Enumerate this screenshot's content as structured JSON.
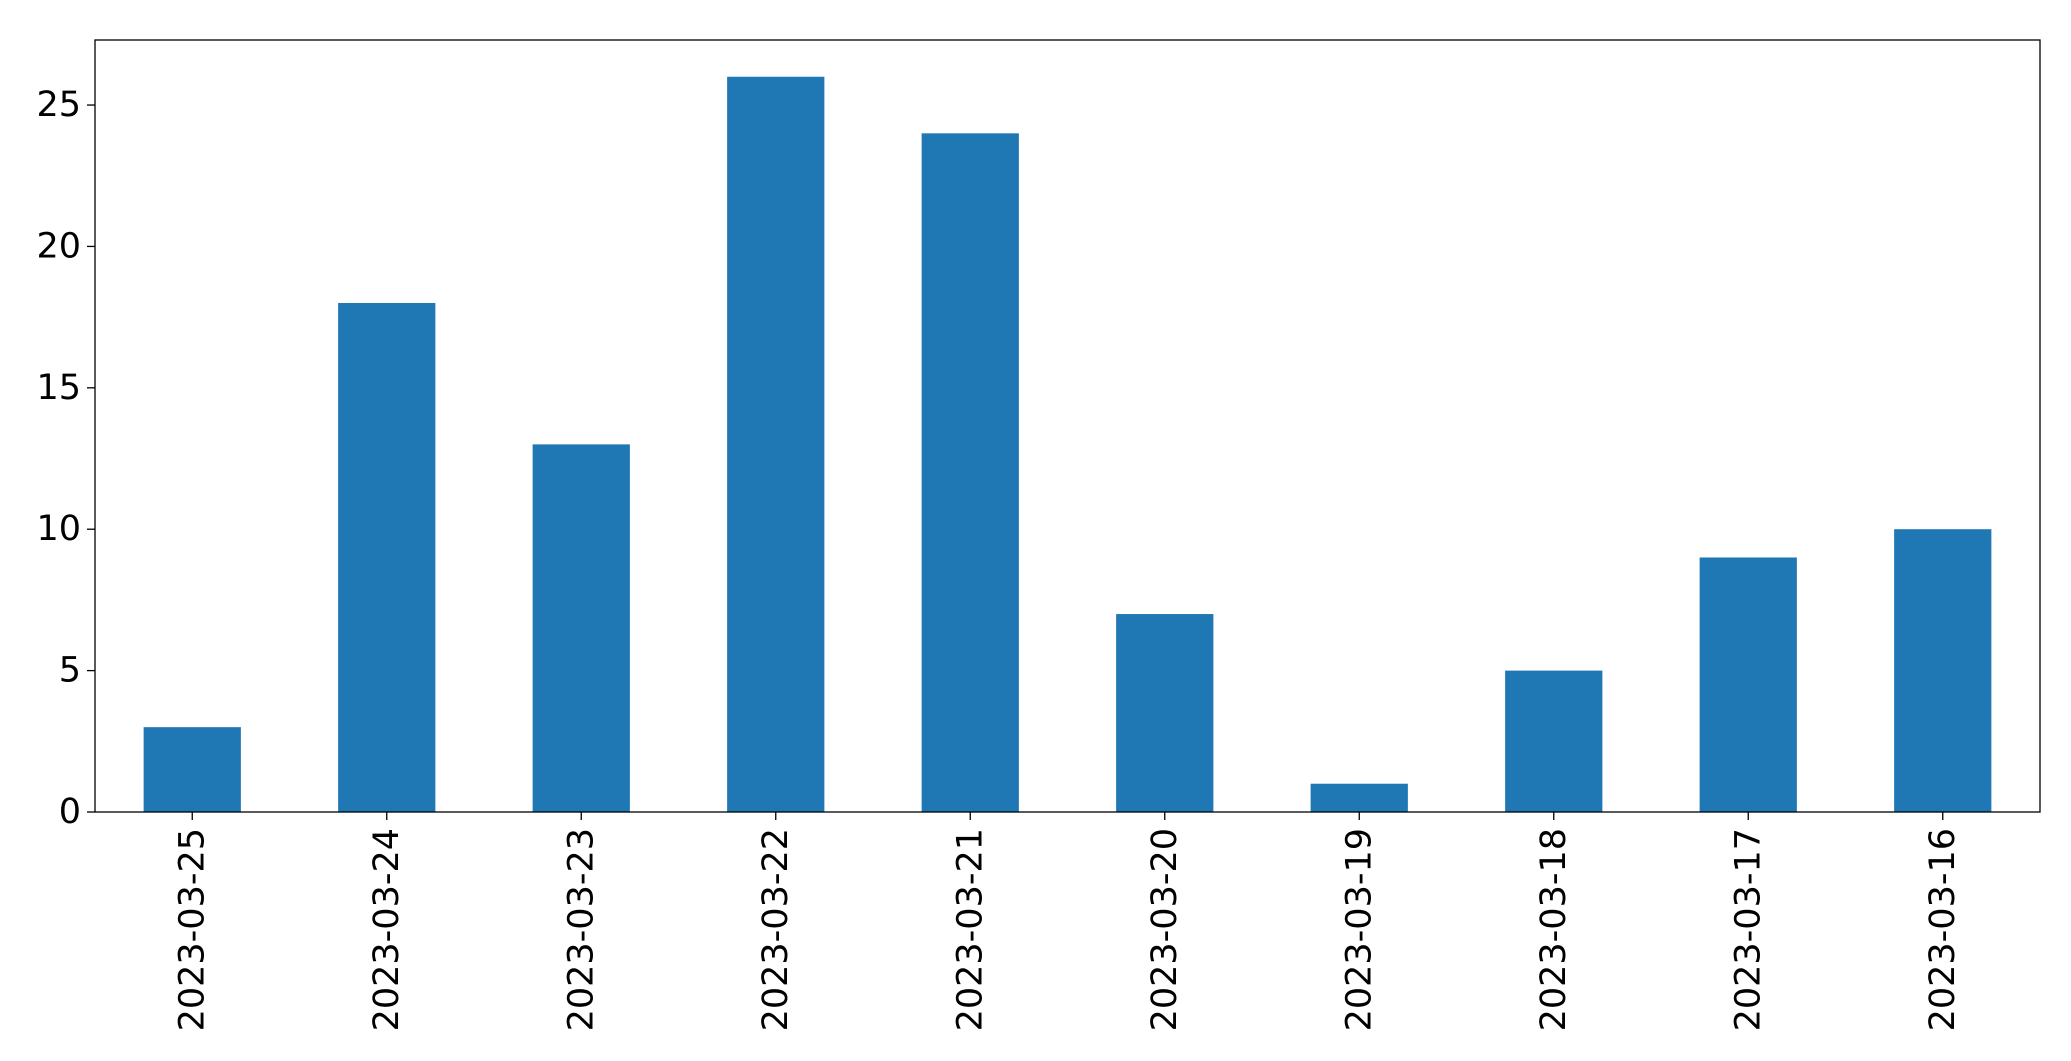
{
  "chart_data": {
    "type": "bar",
    "title": "",
    "xlabel": "",
    "ylabel": "",
    "categories": [
      "2023-03-25",
      "2023-03-24",
      "2023-03-23",
      "2023-03-22",
      "2023-03-21",
      "2023-03-20",
      "2023-03-19",
      "2023-03-18",
      "2023-03-17",
      "2023-03-16"
    ],
    "values": [
      3,
      18,
      13,
      26,
      24,
      7,
      1,
      5,
      9,
      10
    ],
    "ylim": [
      0,
      27.3
    ],
    "yticks": [
      0,
      5,
      10,
      15,
      20,
      25
    ],
    "grid": false,
    "legend": false,
    "colors": {
      "bar": "#1f77b4"
    }
  }
}
